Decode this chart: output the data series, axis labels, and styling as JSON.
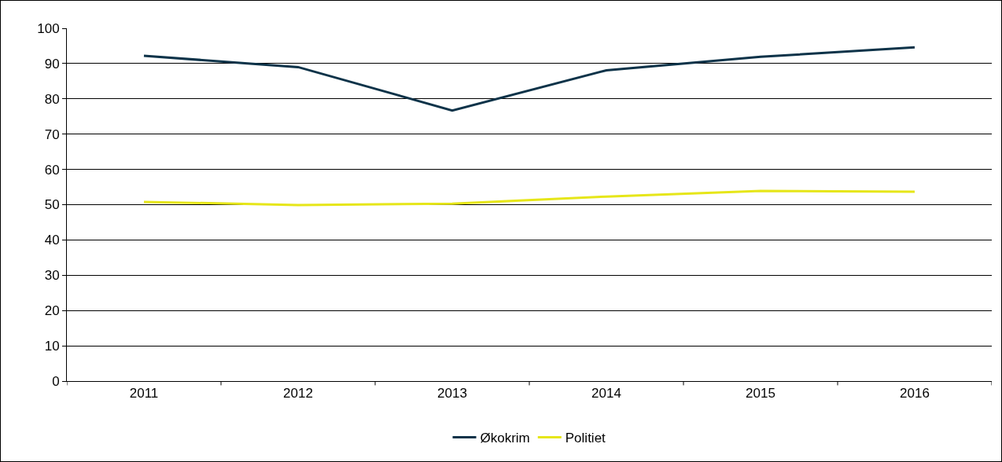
{
  "chart_data": {
    "type": "line",
    "categories": [
      "2011",
      "2012",
      "2013",
      "2014",
      "2015",
      "2016"
    ],
    "series": [
      {
        "name": "Økokrim",
        "color": "#0d3349",
        "values": [
          92.2,
          89.0,
          76.7,
          88.1,
          91.9,
          94.6
        ]
      },
      {
        "name": "Politiet",
        "color": "#e6e619",
        "values": [
          50.8,
          49.9,
          50.3,
          52.3,
          53.9,
          53.7
        ]
      }
    ],
    "ylim": [
      0,
      100
    ],
    "yticks": [
      0,
      10,
      20,
      30,
      40,
      50,
      60,
      70,
      80,
      90,
      100
    ],
    "grid": "y",
    "legend": "bottom",
    "marker": "none",
    "line_style": "solid"
  }
}
